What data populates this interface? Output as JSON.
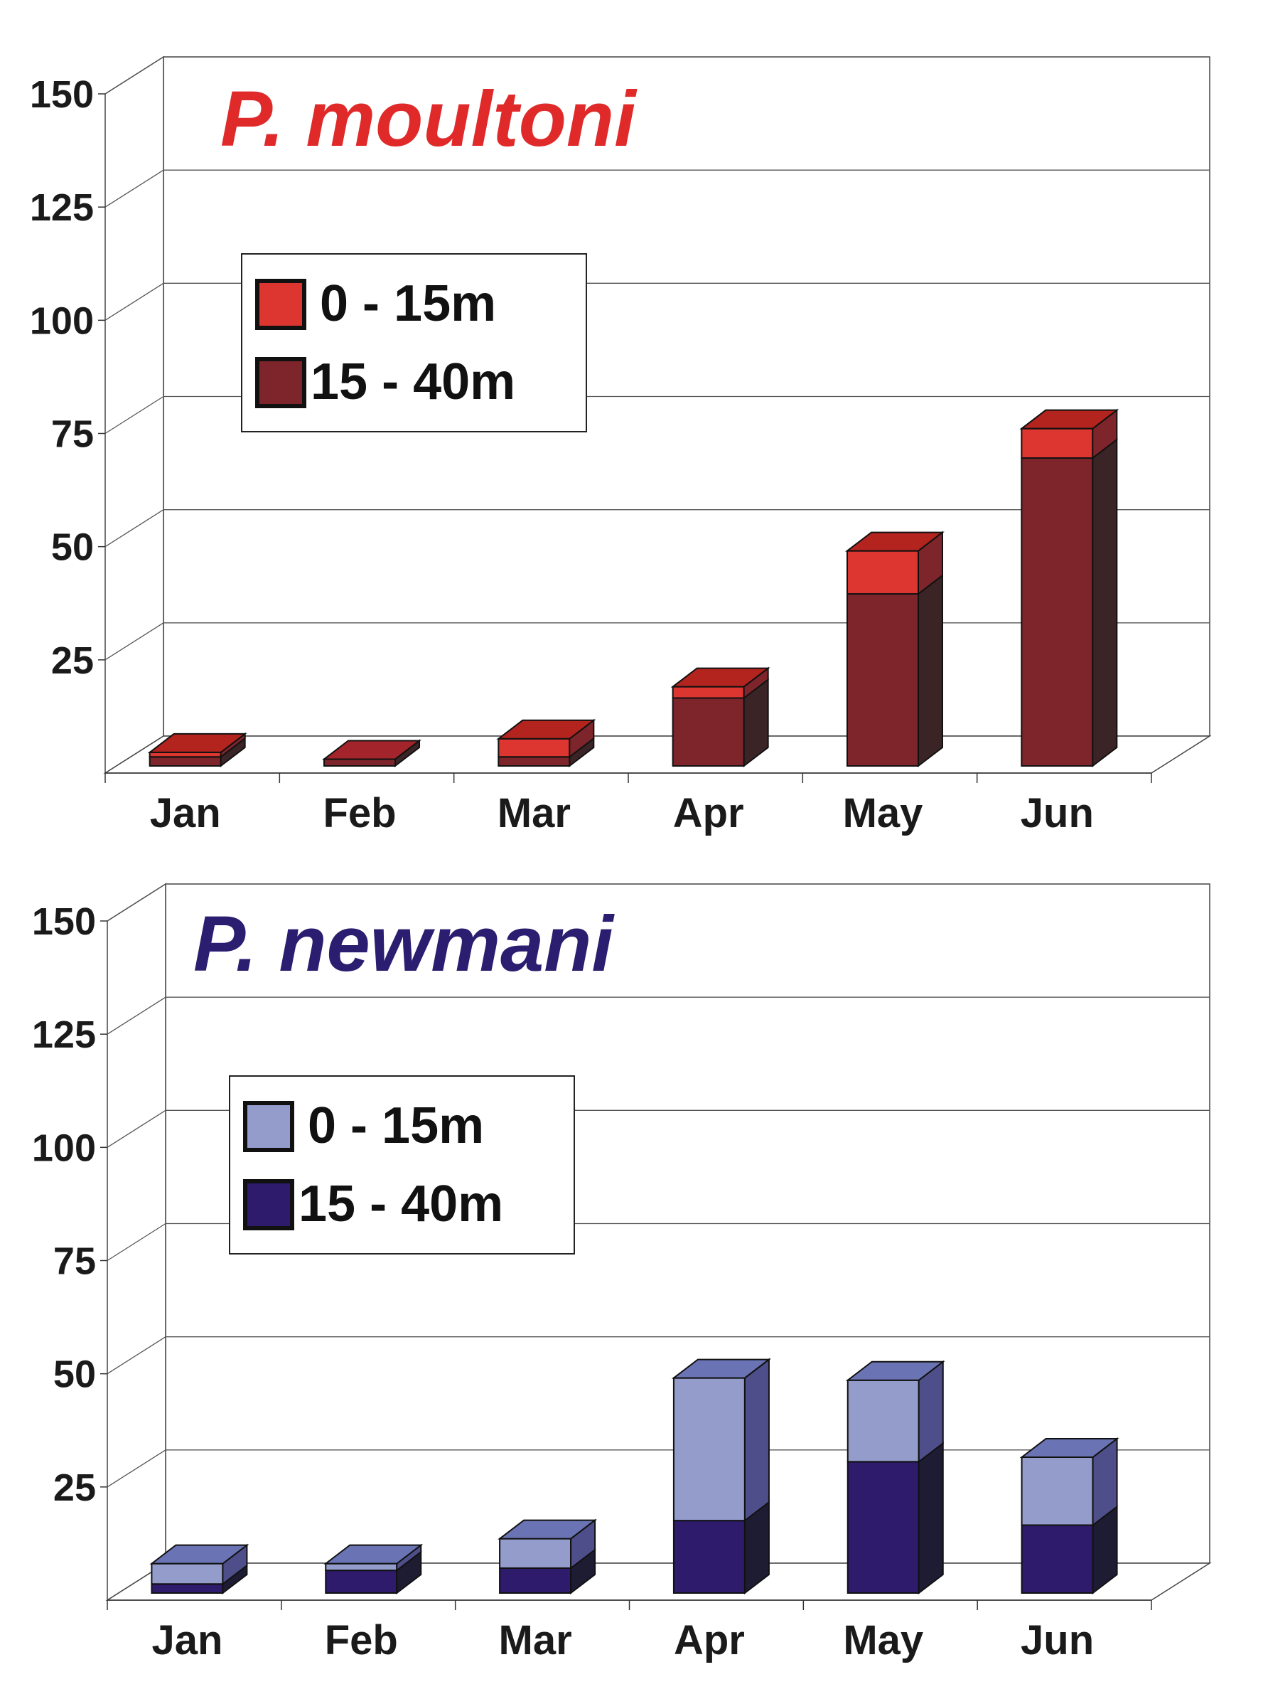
{
  "chart_data": [
    {
      "type": "bar",
      "stacked": true,
      "title": "P. moultoni",
      "title_color": "#e02a2a",
      "categories": [
        "Jan",
        "Feb",
        "Mar",
        "Apr",
        "May",
        "Jun"
      ],
      "y_ticks": [
        "150",
        "125",
        "100",
        "75",
        "50",
        "25"
      ],
      "ylim": [
        0,
        150
      ],
      "grid": true,
      "legend_position": "top-left",
      "series": [
        {
          "name": "15 - 40m",
          "values": [
            2,
            1.5,
            2,
            15,
            38,
            68
          ],
          "color": "#7e252b",
          "side_color": "#3a2426",
          "top_color": "#a3252b"
        },
        {
          "name": "0 - 15m",
          "values": [
            1,
            0,
            4,
            2.5,
            9.5,
            6.5
          ],
          "color": "#dd3530",
          "side_color": "#7e252b",
          "top_color": "#b3241f"
        }
      ]
    },
    {
      "type": "bar",
      "stacked": true,
      "title": "P. newmani",
      "title_color": "#2b1d6f",
      "categories": [
        "Jan",
        "Feb",
        "Mar",
        "Apr",
        "May",
        "Jun"
      ],
      "y_ticks": [
        "150",
        "125",
        "100",
        "75",
        "50",
        "25"
      ],
      "ylim": [
        0,
        150
      ],
      "grid": true,
      "legend_position": "top-left",
      "series": [
        {
          "name": "15 - 40m",
          "values": [
            2,
            5,
            5.5,
            16,
            29,
            15
          ],
          "color": "#2e1b6b",
          "side_color": "#1e1c33",
          "top_color": "#2e1b6b"
        },
        {
          "name": "0 - 15m",
          "values": [
            4.5,
            1.5,
            6.5,
            31.5,
            18,
            15
          ],
          "color": "#939ccb",
          "side_color": "#4e4f8a",
          "top_color": "#6a74b4"
        }
      ]
    }
  ]
}
